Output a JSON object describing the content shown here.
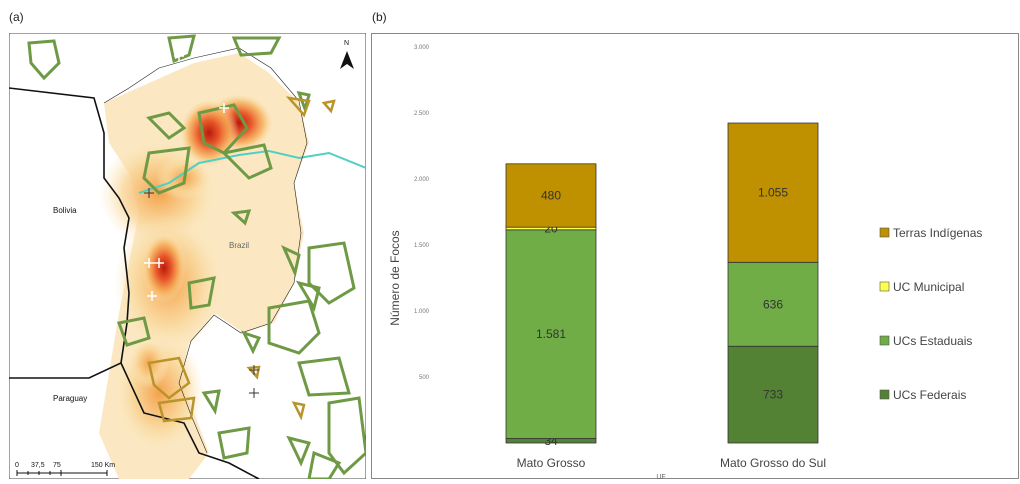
{
  "panels": {
    "a_label": "(a)",
    "b_label": "(b)"
  },
  "map": {
    "country_labels": [
      "Bolivia",
      "Brazil",
      "Paraguay"
    ],
    "north_label": "N",
    "scale_labels": [
      "0",
      "37,5",
      "75",
      "150 Km"
    ],
    "colors": {
      "heat_low": "#fbe8c2",
      "heat_mid": "#f5b35c",
      "heat_high": "#c81d10",
      "protected_area": "#6f9a45",
      "indigenous": "#b8942a",
      "river": "#4fd0c2"
    }
  },
  "chart_data": {
    "type": "bar",
    "stacked": true,
    "categories": [
      "Mato Grosso",
      "Mato Grosso do Sul"
    ],
    "series": [
      {
        "name": "UCs Federais",
        "color": "#548235",
        "values": [
          34,
          733
        ],
        "labels": [
          "34",
          "733"
        ]
      },
      {
        "name": "UCs Estaduais",
        "color": "#70ad47",
        "values": [
          1581,
          636
        ],
        "labels": [
          "1.581",
          "636"
        ]
      },
      {
        "name": "UC Municipal",
        "color": "#ffff4d",
        "values": [
          20,
          0
        ],
        "labels": [
          "20",
          ""
        ]
      },
      {
        "name": "Terras Indígenas",
        "color": "#bf9000",
        "values": [
          480,
          1055
        ],
        "labels": [
          "480",
          "1.055"
        ]
      }
    ],
    "legend_order": [
      "Terras Indígenas",
      "UC Municipal",
      "UCs Estaduais",
      "UCs Federais"
    ],
    "legend_position": "right",
    "ylabel": "Número de Focos",
    "xlabel": "UF",
    "ylim": [
      0,
      3000
    ],
    "yticks": [
      0,
      500,
      1000,
      1500,
      2000,
      2500,
      3000
    ],
    "ytick_labels": [
      "",
      "500",
      "1.000",
      "1.500",
      "2.000",
      "2.500",
      "3.000"
    ],
    "grid": false
  }
}
